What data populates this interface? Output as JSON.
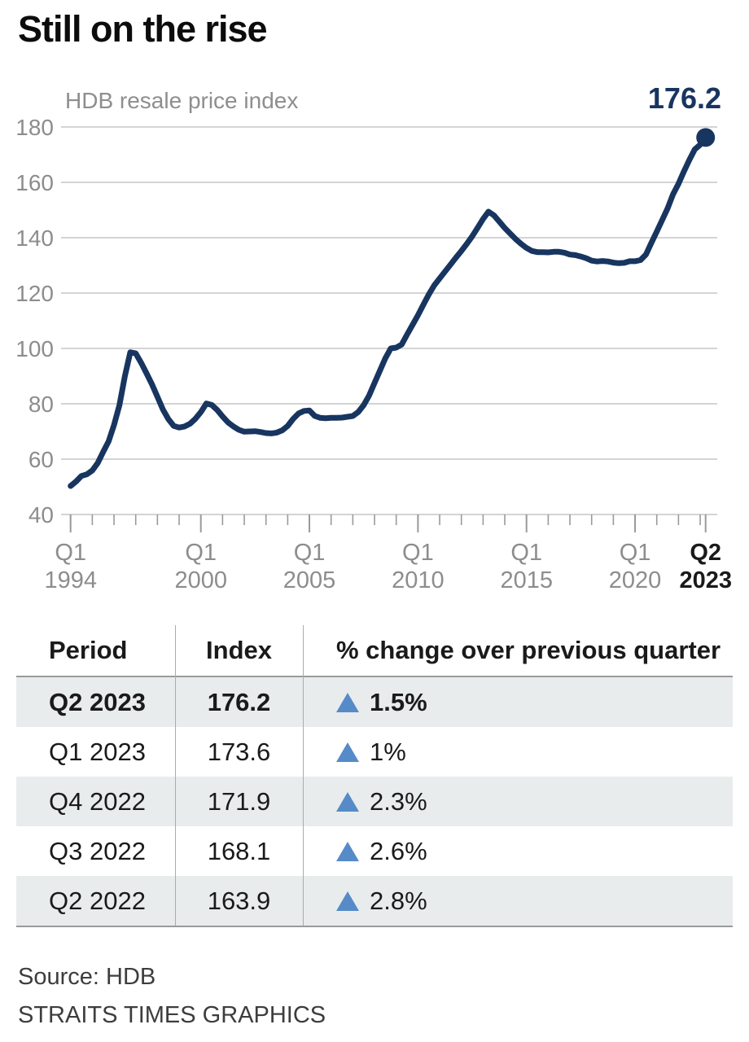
{
  "title": "Still on the rise",
  "chart_data": {
    "type": "line",
    "title": "Still on the rise",
    "subtitle": "HDB resale price index",
    "series_name": "HDB resale price index",
    "end_label": "176.2",
    "x_start": 1994.0,
    "x_step": 0.25,
    "x_range": [
      1994.0,
      2023.25
    ],
    "ylim": [
      40,
      180
    ],
    "grid": true,
    "y_ticks": [
      180,
      160,
      140,
      120,
      100,
      80,
      60,
      40
    ],
    "x_ticks_major": [
      {
        "line1": "Q1",
        "line2": "1994",
        "year": 1994.0,
        "bold": false
      },
      {
        "line1": "Q1",
        "line2": "2000",
        "year": 2000.0,
        "bold": false
      },
      {
        "line1": "Q1",
        "line2": "2005",
        "year": 2005.0,
        "bold": false
      },
      {
        "line1": "Q1",
        "line2": "2010",
        "year": 2010.0,
        "bold": false
      },
      {
        "line1": "Q1",
        "line2": "2015",
        "year": 2015.0,
        "bold": false
      },
      {
        "line1": "Q1",
        "line2": "2020",
        "year": 2020.0,
        "bold": false
      },
      {
        "line1": "Q2",
        "line2": "2023",
        "year": 2023.25,
        "bold": true
      }
    ],
    "values": [
      50.3,
      51.9,
      53.9,
      54.5,
      55.9,
      58.6,
      62.6,
      66.4,
      72.3,
      79.5,
      90.0,
      98.6,
      98.2,
      94.8,
      91.0,
      87.0,
      82.5,
      78.0,
      74.5,
      72.0,
      71.4,
      71.8,
      72.8,
      74.6,
      77.0,
      80.1,
      79.6,
      77.8,
      75.4,
      73.3,
      71.8,
      70.6,
      69.9,
      70.0,
      70.1,
      69.8,
      69.4,
      69.3,
      69.6,
      70.4,
      72.0,
      74.5,
      76.5,
      77.4,
      77.6,
      75.6,
      74.9,
      74.8,
      74.9,
      74.9,
      75.0,
      75.3,
      75.6,
      77.0,
      79.5,
      83.0,
      87.5,
      92.0,
      96.5,
      100.0,
      100.3,
      101.4,
      105.0,
      108.5,
      112.0,
      115.8,
      119.5,
      122.8,
      125.3,
      127.8,
      130.3,
      132.8,
      135.2,
      137.8,
      140.5,
      143.6,
      146.8,
      149.4,
      148.1,
      145.8,
      143.5,
      141.5,
      139.5,
      137.8,
      136.3,
      135.2,
      134.8,
      134.8,
      134.7,
      134.9,
      134.9,
      134.6,
      133.9,
      133.7,
      133.2,
      132.6,
      131.7,
      131.4,
      131.6,
      131.4,
      131.0,
      130.8,
      130.9,
      131.5,
      131.5,
      131.9,
      133.9,
      138.1,
      142.2,
      146.4,
      150.6,
      155.7,
      159.5,
      163.9,
      168.1,
      171.9,
      173.6,
      176.2
    ],
    "line_color": "#183560",
    "dot_color": "#183560",
    "grid_color": "#c6c6c6",
    "tick_color": "#9a9a9a",
    "axis_label_color": "#8d8d8d",
    "axis_label_bold_color": "#1a1a1a",
    "legend_position": "none"
  },
  "table": {
    "headers": [
      "Period",
      "Index",
      "% change over previous quarter"
    ],
    "arrow_icon": "up-triangle",
    "arrow_glyph": "▲",
    "arrow_color": "#568bc8",
    "rows": [
      {
        "period": "Q2 2023",
        "index": "176.2",
        "change": "1.5%",
        "highlight": true
      },
      {
        "period": "Q1 2023",
        "index": "173.6",
        "change": "1%",
        "highlight": false
      },
      {
        "period": "Q4 2022",
        "index": "171.9",
        "change": "2.3%",
        "highlight": true
      },
      {
        "period": "Q3 2022",
        "index": "168.1",
        "change": "2.6%",
        "highlight": false
      },
      {
        "period": "Q2 2022",
        "index": "163.9",
        "change": "2.8%",
        "highlight": true
      }
    ]
  },
  "source": {
    "line1": "Source: HDB",
    "line2": "STRAITS TIMES GRAPHICS"
  }
}
